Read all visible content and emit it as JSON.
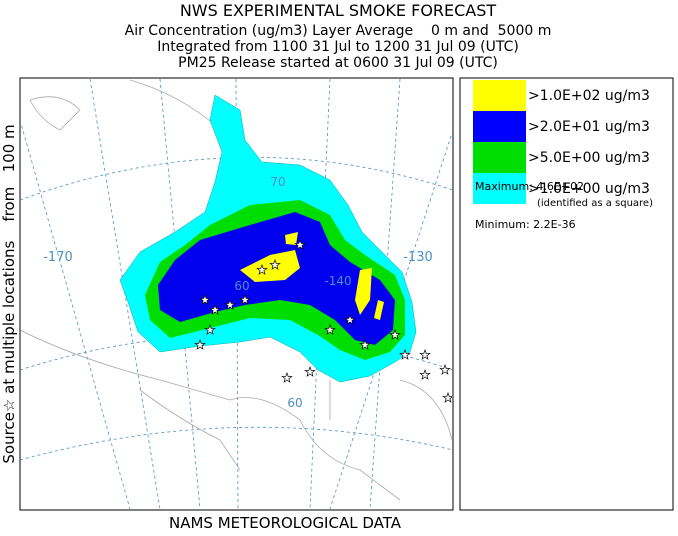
{
  "header": {
    "title": "NWS EXPERIMENTAL SMOKE FORECAST",
    "lines": [
      "Air Concentration (ug/m3) Layer Average    0 m and  5000 m",
      "Integrated from 1100 31 Jul to 1200 31 Jul 09 (UTC)",
      "PM25 Release started at 0600 31 Jul 09 (UTC)"
    ]
  },
  "side_label": "Source☆ at multiple locations    from   100 m",
  "footer": "NAMS METEOROLOGICAL DATA",
  "map": {
    "labels": [
      "-170",
      "-130",
      "70",
      "60",
      "60",
      "-140"
    ]
  },
  "legend": {
    "items": [
      {
        "label": ">1.0E+02 ug/m3",
        "color": "#ffff00"
      },
      {
        "label": ">2.0E+01 ug/m3",
        "color": "#0000ff"
      },
      {
        "label": ">5.0E+00 ug/m3",
        "color": "#00dd00"
      },
      {
        "label": ">1.0E+00 ug/m3",
        "color": "#00ffff"
      }
    ],
    "maximum": "Maximum: 4.6E+02",
    "maximum_note": "(identified as a square)",
    "minimum": "Minimum: 2.2E-36"
  }
}
